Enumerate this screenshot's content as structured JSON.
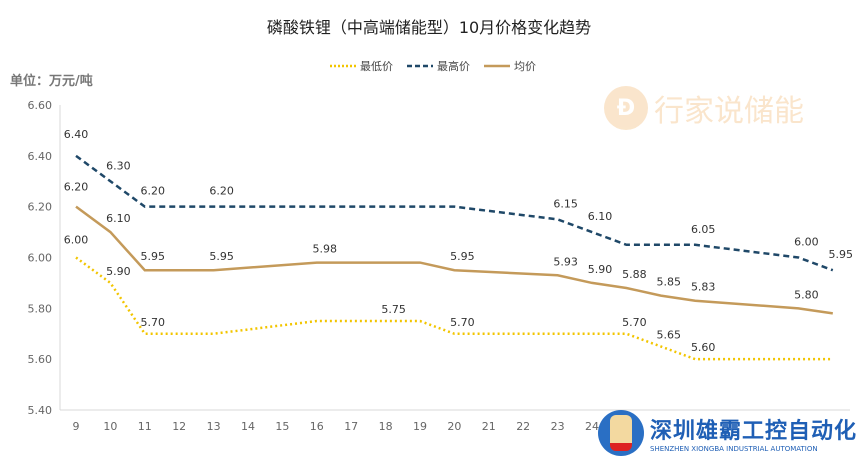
{
  "chart_data": {
    "type": "line",
    "title": "磷酸铁锂（中高端储能型）10月价格变化趋势",
    "unit_label": "单位：万元/吨",
    "xlabel": "",
    "ylabel": "",
    "categories": [
      "9",
      "10",
      "11",
      "12",
      "13",
      "14",
      "15",
      "16",
      "17",
      "18",
      "19",
      "20",
      "21",
      "22",
      "23",
      "24"
    ],
    "x_range": [
      9,
      31
    ],
    "ylim": [
      5.4,
      6.6
    ],
    "y_ticks": [
      "5.40",
      "5.60",
      "5.80",
      "6.00",
      "6.20",
      "6.40",
      "6.60"
    ],
    "grid": false,
    "legend_position": "top",
    "series": [
      {
        "name": "最低价",
        "color": "#f2c500",
        "style": "dotted",
        "points": [
          [
            9,
            6.0
          ],
          [
            10,
            5.9
          ],
          [
            11,
            5.7
          ],
          [
            13,
            5.7
          ],
          [
            16,
            5.75
          ],
          [
            19,
            5.75
          ],
          [
            20,
            5.7
          ],
          [
            25,
            5.7
          ],
          [
            26,
            5.65
          ],
          [
            27,
            5.6
          ],
          [
            31,
            5.6
          ]
        ],
        "labels": [
          [
            9,
            "6.00"
          ],
          [
            10,
            "5.90"
          ],
          [
            11,
            "5.70"
          ],
          [
            18,
            "5.75"
          ],
          [
            20,
            "5.70"
          ],
          [
            25,
            "5.70"
          ],
          [
            26,
            "5.65"
          ],
          [
            27,
            "5.60"
          ]
        ]
      },
      {
        "name": "最高价",
        "color": "#1f4868",
        "style": "dashed",
        "points": [
          [
            9,
            6.4
          ],
          [
            10,
            6.3
          ],
          [
            11,
            6.2
          ],
          [
            13,
            6.2
          ],
          [
            20,
            6.2
          ],
          [
            23,
            6.15
          ],
          [
            24,
            6.1
          ],
          [
            25,
            6.05
          ],
          [
            27,
            6.05
          ],
          [
            30,
            6.0
          ],
          [
            31,
            5.95
          ]
        ],
        "labels": [
          [
            9,
            "6.40"
          ],
          [
            10,
            "6.30"
          ],
          [
            11,
            "6.20"
          ],
          [
            13,
            "6.20"
          ],
          [
            23,
            "6.15"
          ],
          [
            24,
            "6.10"
          ],
          [
            27,
            "6.05"
          ],
          [
            30,
            "6.00"
          ],
          [
            31,
            "5.95"
          ]
        ]
      },
      {
        "name": "均价",
        "color": "#c49a5a",
        "style": "solid",
        "points": [
          [
            9,
            6.2
          ],
          [
            10,
            6.1
          ],
          [
            11,
            5.95
          ],
          [
            13,
            5.95
          ],
          [
            16,
            5.98
          ],
          [
            19,
            5.98
          ],
          [
            20,
            5.95
          ],
          [
            23,
            5.93
          ],
          [
            24,
            5.9
          ],
          [
            25,
            5.88
          ],
          [
            26,
            5.85
          ],
          [
            27,
            5.83
          ],
          [
            30,
            5.8
          ],
          [
            31,
            5.78
          ]
        ],
        "labels": [
          [
            9,
            "6.20"
          ],
          [
            10,
            "6.10"
          ],
          [
            11,
            "5.95"
          ],
          [
            13,
            "5.95"
          ],
          [
            16,
            "5.98"
          ],
          [
            20,
            "5.95"
          ],
          [
            23,
            "5.93"
          ],
          [
            24,
            "5.90"
          ],
          [
            25,
            "5.88"
          ],
          [
            26,
            "5.85"
          ],
          [
            27,
            "5.83"
          ],
          [
            30,
            "5.80"
          ]
        ]
      }
    ]
  },
  "watermarks": {
    "top": "行家说储能",
    "top_icon": "行家说-logo-icon",
    "bottom_cn": "深圳雄霸工控自动化",
    "bottom_en": "SHENZHEN XIONGBA INDUSTRIAL AUTOMATION"
  }
}
